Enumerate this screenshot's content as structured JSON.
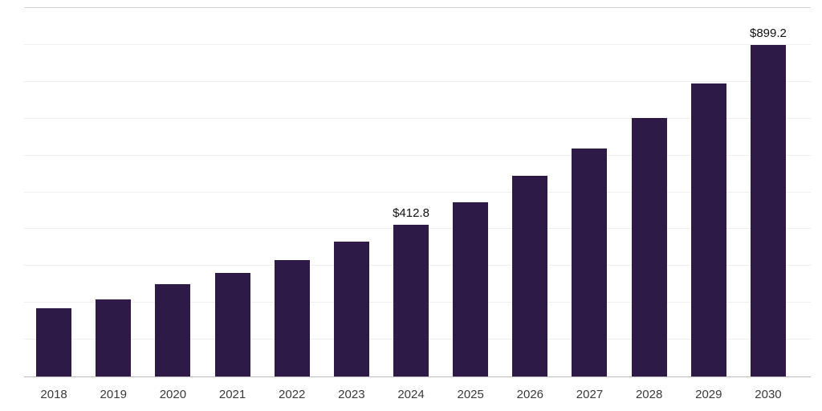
{
  "chart_data": {
    "type": "bar",
    "title": "",
    "xlabel": "",
    "ylabel": "",
    "categories": [
      "2018",
      "2019",
      "2020",
      "2021",
      "2022",
      "2023",
      "2024",
      "2025",
      "2026",
      "2027",
      "2028",
      "2029",
      "2030"
    ],
    "values": [
      186,
      210,
      250,
      281,
      316,
      366,
      412.8,
      472,
      545,
      619,
      701,
      796,
      899.2
    ],
    "data_labels": {
      "2024": "$412.8",
      "2030": "$899.2"
    },
    "ylim": [
      0,
      1000
    ],
    "grid": true,
    "grid_divisions": 10,
    "legend": "none",
    "bar_color": "#2e1a47",
    "background": "#ffffff"
  }
}
